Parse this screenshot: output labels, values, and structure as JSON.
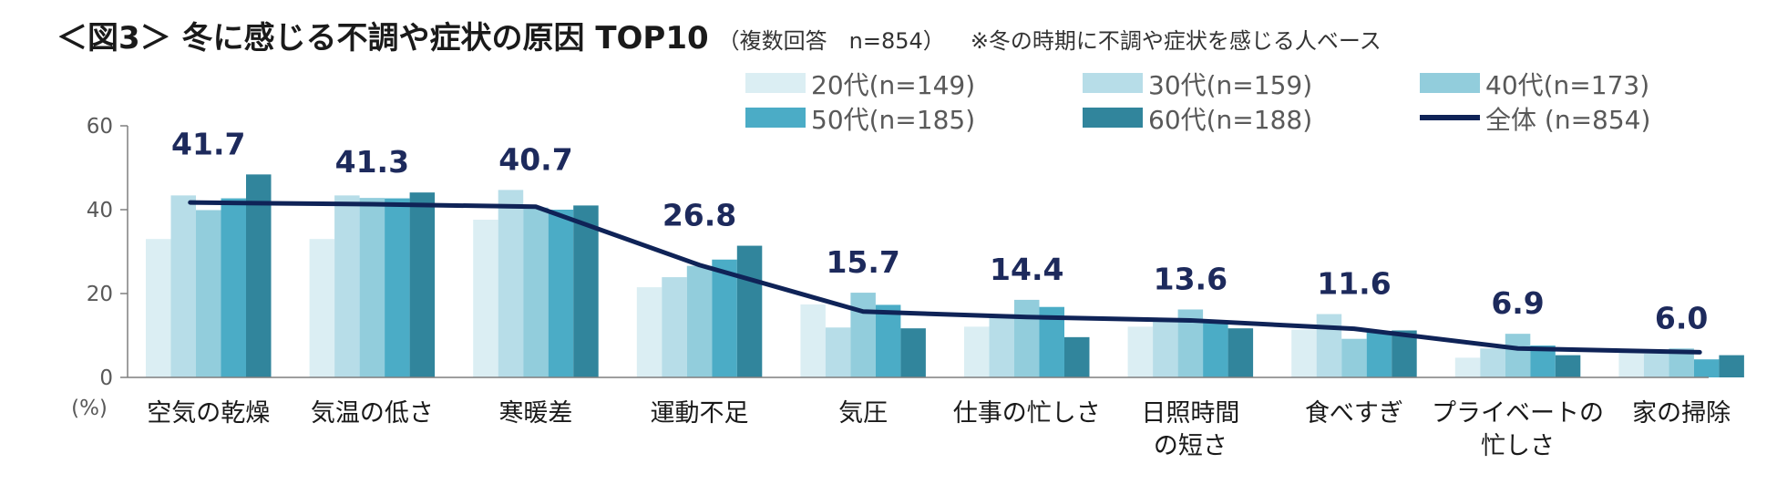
{
  "title": {
    "main": "＜図3＞ 冬に感じる不調や症状の原因 TOP10",
    "sub": "（複数回答　n=854）",
    "note": "※冬の時期に不調や症状を感じる人ベース"
  },
  "colors": {
    "s20": "#dbeef3",
    "s30": "#b7dde8",
    "s40": "#92cddc",
    "s50": "#4bacc6",
    "s60": "#31859c",
    "total": "#0f2357",
    "axis": "#7f7f7f"
  },
  "chart_data": {
    "type": "bar",
    "title": "冬に感じる不調や症状の原因 TOP10",
    "ylabel": "(%)",
    "ylim": [
      0,
      60
    ],
    "yticks": [
      "0",
      "20",
      "40",
      "60"
    ],
    "grid": false,
    "legend": "top-right",
    "categories": [
      [
        "空気の乾燥"
      ],
      [
        "気温の低さ"
      ],
      [
        "寒暖差"
      ],
      [
        "運動不足"
      ],
      [
        "気圧"
      ],
      [
        "仕事の忙しさ"
      ],
      [
        "日照時間",
        "の短さ"
      ],
      [
        "食べすぎ"
      ],
      [
        "プライベートの",
        "忙しさ"
      ],
      [
        "家の掃除"
      ]
    ],
    "series": [
      {
        "name": "20代(n=149)",
        "color_key": "s20",
        "values": [
          33.0,
          33.0,
          37.6,
          21.5,
          17.4,
          12.1,
          12.1,
          11.4,
          4.7,
          6.0
        ]
      },
      {
        "name": "30代(n=159)",
        "color_key": "s30",
        "values": [
          43.4,
          43.4,
          44.7,
          23.9,
          11.9,
          15.1,
          13.8,
          15.1,
          6.9,
          5.7
        ]
      },
      {
        "name": "40代(n=173)",
        "color_key": "s40",
        "values": [
          39.9,
          42.8,
          40.5,
          26.6,
          20.2,
          18.5,
          16.2,
          9.2,
          10.4,
          6.9
        ]
      },
      {
        "name": "50代(n=185)",
        "color_key": "s50",
        "values": [
          42.7,
          42.7,
          40.0,
          28.1,
          17.3,
          16.8,
          13.5,
          10.8,
          7.6,
          4.3
        ]
      },
      {
        "name": "60代(n=188)",
        "color_key": "s60",
        "values": [
          48.4,
          44.1,
          41.0,
          31.4,
          11.7,
          9.6,
          11.7,
          11.2,
          5.3,
          5.3
        ]
      }
    ],
    "total": {
      "name": "全体 (n=854)",
      "values": [
        41.7,
        41.3,
        40.7,
        26.8,
        15.7,
        14.4,
        13.6,
        11.6,
        6.9,
        6.0
      ],
      "labels": [
        "41.7",
        "41.3",
        "40.7",
        "26.8",
        "15.7",
        "14.4",
        "13.6",
        "11.6",
        "6.9",
        "6.0"
      ]
    }
  }
}
